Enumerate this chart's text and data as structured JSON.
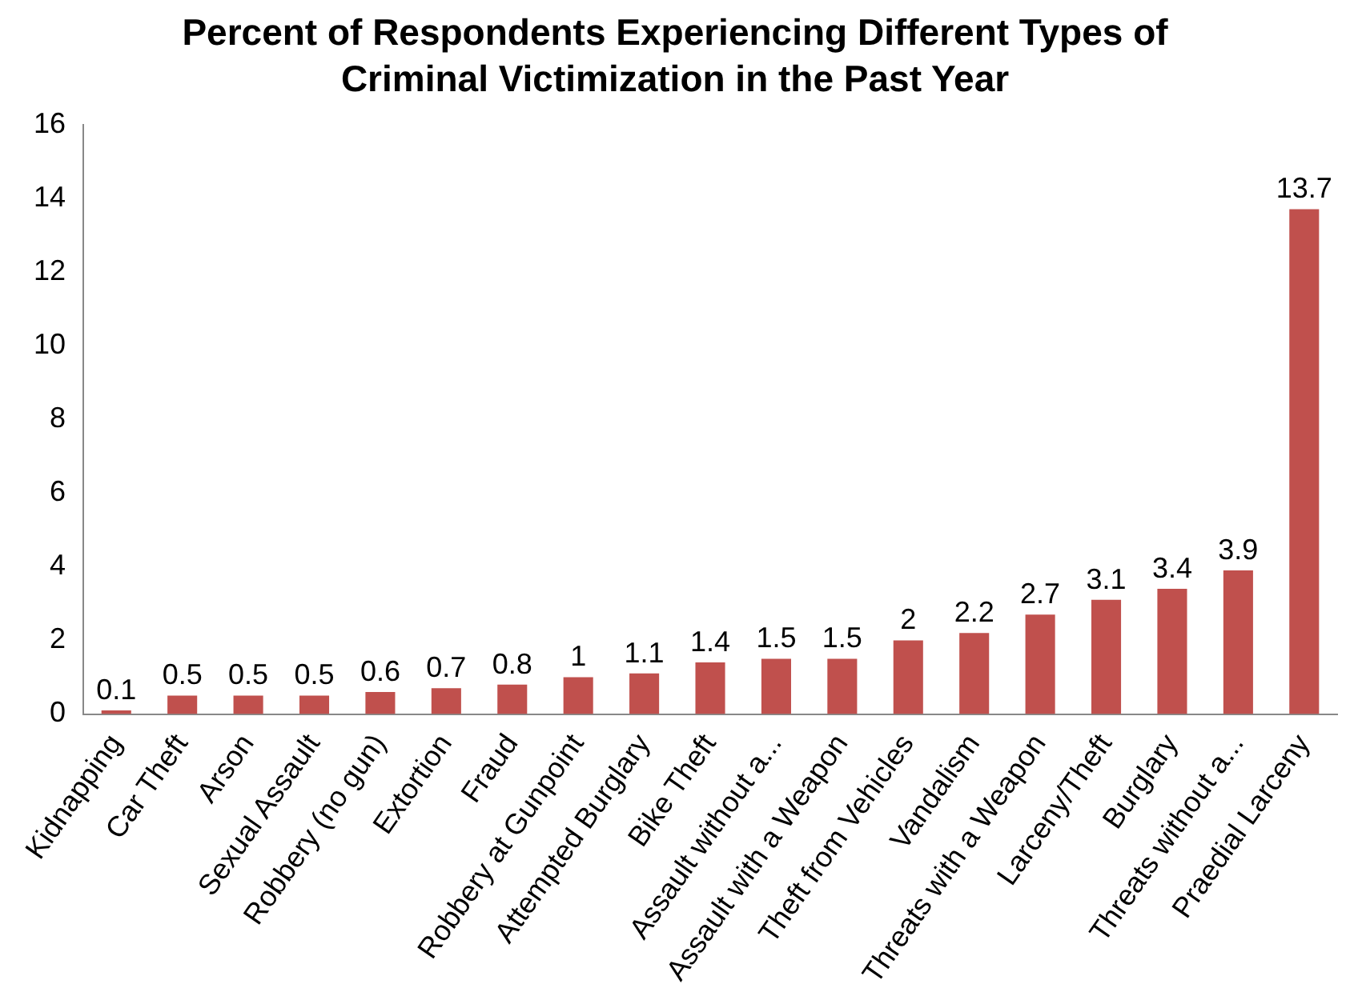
{
  "chart_data": {
    "type": "bar",
    "title": "Percent of Respondents Experiencing Different Types of Criminal Victimization in the Past Year",
    "categories": [
      "Kidnapping",
      "Car Theft",
      "Arson",
      "Sexual Assault",
      "Robbery (no gun)",
      "Extortion",
      "Fraud",
      "Robbery at Gunpoint",
      "Attempted Burglary",
      "Bike Theft",
      "Assault without a...",
      "Assault with a Weapon",
      "Theft from Vehicles",
      "Vandalism",
      "Threats with a Weapon",
      "Larceny/Theft",
      "Burglary",
      "Threats without a...",
      "Praedial Larceny"
    ],
    "values": [
      0.1,
      0.5,
      0.5,
      0.5,
      0.6,
      0.7,
      0.8,
      1,
      1.1,
      1.4,
      1.5,
      1.5,
      2,
      2.2,
      2.7,
      3.1,
      3.4,
      3.9,
      13.7
    ],
    "color": "#c0504d",
    "ylim": [
      0,
      16
    ],
    "yticks": [
      0,
      2,
      4,
      6,
      8,
      10,
      12,
      14,
      16
    ],
    "grid": false,
    "legend": false,
    "data_labels": true
  }
}
